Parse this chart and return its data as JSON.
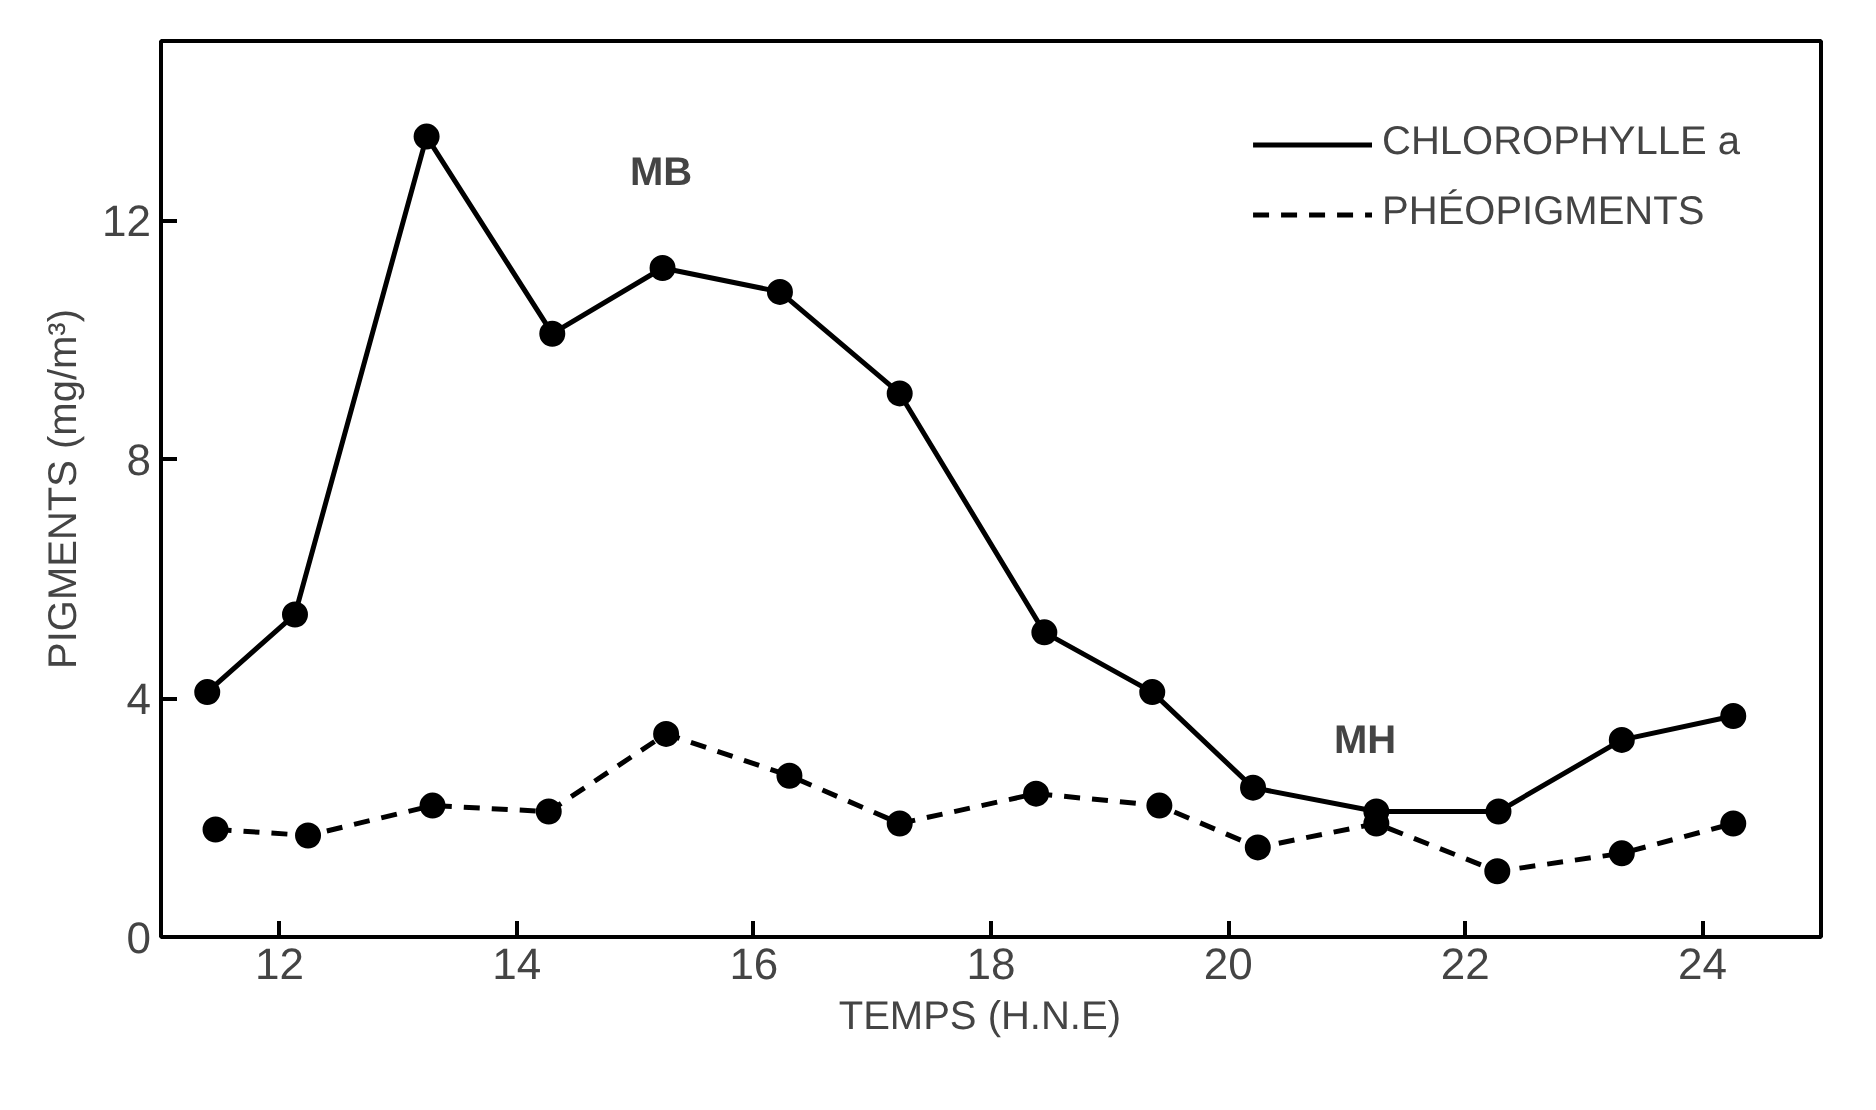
{
  "chart_data": {
    "type": "line",
    "xlabel": "TEMPS   (H.N.E)",
    "ylabel": "PIGMENTS (mg/m³)",
    "xlim": [
      11,
      25
    ],
    "ylim": [
      0,
      15
    ],
    "xticks": [
      12,
      14,
      16,
      18,
      20,
      22,
      24
    ],
    "yticks": [
      0,
      4,
      8,
      12
    ],
    "grid": false,
    "legend": "top right",
    "marker": "circle",
    "series": [
      {
        "name": "CHLOROPHYLLE a",
        "color": "#000000",
        "line_style": "solid",
        "x": [
          11.39,
          12.13,
          13.24,
          14.3,
          15.23,
          16.22,
          17.23,
          18.45,
          19.36,
          20.21,
          21.25,
          22.28,
          23.32,
          24.26
        ],
        "values": [
          4.1,
          5.4,
          13.4,
          10.1,
          11.2,
          10.8,
          9.1,
          5.1,
          4.1,
          2.5,
          2.1,
          2.1,
          3.3,
          3.7
        ]
      },
      {
        "name": "PHÉOPIGMENTS",
        "color": "#000000",
        "line_style": "dashed",
        "x": [
          11.46,
          12.24,
          13.29,
          14.27,
          15.26,
          16.3,
          17.23,
          18.38,
          19.42,
          20.25,
          21.25,
          22.27,
          23.32,
          24.26
        ],
        "values": [
          1.8,
          1.7,
          2.2,
          2.1,
          3.4,
          2.7,
          1.9,
          2.4,
          2.2,
          1.5,
          1.9,
          1.1,
          1.4,
          1.9
        ]
      }
    ],
    "annotations": [
      "MB",
      "MH"
    ]
  }
}
